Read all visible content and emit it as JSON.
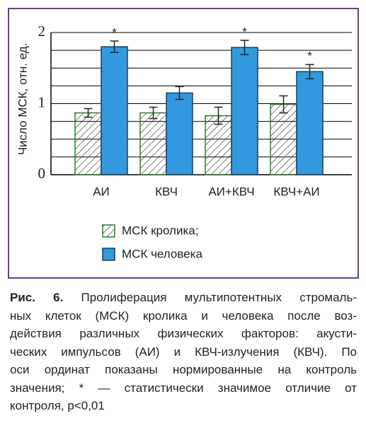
{
  "chart_data": {
    "type": "bar",
    "y_label": "Число МСК, отн. ед.",
    "categories": [
      "АИ",
      "КВЧ",
      "АИ+КВЧ",
      "КВЧ+АИ"
    ],
    "series": [
      {
        "name": "МСК кролика;",
        "color": "#ffffff",
        "pattern": "hatch",
        "values": [
          0.87,
          0.87,
          0.83,
          0.99
        ],
        "errors": [
          0.06,
          0.08,
          0.12,
          0.12
        ],
        "markers": [
          null,
          null,
          null,
          null
        ]
      },
      {
        "name": "МСК человека",
        "color": "#3399dd",
        "pattern": "solid",
        "values": [
          1.8,
          1.15,
          1.79,
          1.45
        ],
        "errors": [
          0.08,
          0.09,
          0.1,
          0.1
        ],
        "markers": [
          "*",
          null,
          "*",
          "*"
        ]
      }
    ],
    "ylim": [
      0,
      2
    ],
    "yticks": [
      0,
      1,
      2
    ],
    "y_minor_ticks": [
      0.25,
      0.5,
      0.75,
      1.25,
      1.5,
      1.75
    ],
    "grid": true
  },
  "caption": {
    "label": "Рис. 6.",
    "lines": [
      "Пролиферация мультипотентных стромаль-",
      "ных клеток (МСК) кролика и человека после воз-",
      "действия различных физических факторов: акусти-",
      "ческих импульсов (АИ) и КВЧ-излучения (КВЧ). По",
      "оси ординат показаны нормированные на контроль",
      "значения; * — статистически значимое отличие от",
      "контроля, p<0,01"
    ]
  }
}
